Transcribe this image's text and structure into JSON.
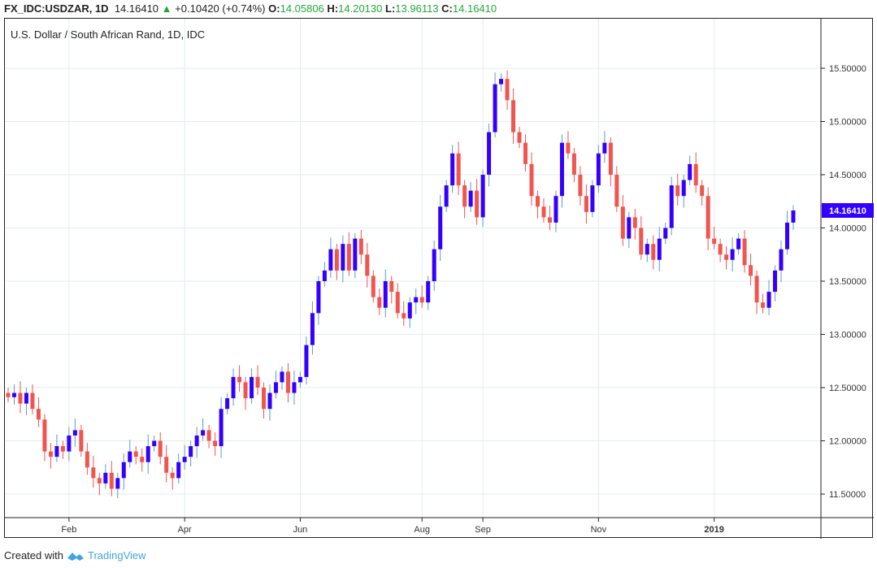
{
  "header": {
    "symbol": "FX_IDC:USDZAR, 1D",
    "last": "14.16410",
    "change": "+0.10420 (+0.74%)",
    "o_label": "O:",
    "o": "14.05806",
    "h_label": "H:",
    "h": "14.20130",
    "l_label": "L:",
    "l": "13.96113",
    "c_label": "C:",
    "c": "14.16410"
  },
  "footer": {
    "created": "Created with",
    "brand": "TradingView"
  },
  "colors": {
    "up": "#3300ff",
    "down": "#f0554f",
    "wick_up": "#5a9bd8",
    "wick_down": "#f0554f",
    "last_bg": "#3300ff",
    "grid": "#e1ecf2",
    "change": "#22a83a"
  },
  "chart_data": {
    "type": "candlestick",
    "title": "U.S. Dollar / South African Rand, 1D, IDC",
    "ylim": [
      11.2,
      15.95
    ],
    "y_ticks": [
      "11.50000",
      "12.00000",
      "12.50000",
      "13.00000",
      "13.50000",
      "14.00000",
      "14.50000",
      "15.00000",
      "15.50000"
    ],
    "x_ticks": [
      {
        "label": "Feb",
        "index": 10
      },
      {
        "label": "Apr",
        "index": 29
      },
      {
        "label": "Jun",
        "index": 48
      },
      {
        "label": "Aug",
        "index": 68
      },
      {
        "label": "Sep",
        "index": 78
      },
      {
        "label": "Nov",
        "index": 97
      },
      {
        "label": "2019",
        "index": 116
      }
    ],
    "last_price_label": "14.16410",
    "closes": [
      12.41,
      12.45,
      12.35,
      12.45,
      12.3,
      12.2,
      11.9,
      11.85,
      11.95,
      11.9,
      12.05,
      12.1,
      11.9,
      11.75,
      11.65,
      11.6,
      11.7,
      11.55,
      11.65,
      11.8,
      11.9,
      11.85,
      11.8,
      11.95,
      12.0,
      11.85,
      11.7,
      11.65,
      11.8,
      11.85,
      11.95,
      12.05,
      12.1,
      12.0,
      11.95,
      12.3,
      12.4,
      12.6,
      12.55,
      12.4,
      12.6,
      12.5,
      12.3,
      12.45,
      12.55,
      12.65,
      12.45,
      12.55,
      12.6,
      12.9,
      13.2,
      13.5,
      13.6,
      13.8,
      13.6,
      13.85,
      13.6,
      13.9,
      13.75,
      13.55,
      13.35,
      13.25,
      13.5,
      13.4,
      13.2,
      13.15,
      13.3,
      13.35,
      13.3,
      13.5,
      13.8,
      14.2,
      14.4,
      14.7,
      14.4,
      14.2,
      14.35,
      14.1,
      14.5,
      14.9,
      15.35,
      15.4,
      15.2,
      14.9,
      14.8,
      14.6,
      14.3,
      14.2,
      14.1,
      14.05,
      14.3,
      14.8,
      14.7,
      14.5,
      14.3,
      14.15,
      14.4,
      14.7,
      14.8,
      14.5,
      14.2,
      13.9,
      14.1,
      14.0,
      13.75,
      13.85,
      13.7,
      13.9,
      14.0,
      14.4,
      14.3,
      14.45,
      14.6,
      14.4,
      14.3,
      13.9,
      13.85,
      13.75,
      13.7,
      13.8,
      13.9,
      13.65,
      13.55,
      13.3,
      13.25,
      13.4,
      13.6,
      13.8,
      14.05,
      14.1641
    ]
  }
}
